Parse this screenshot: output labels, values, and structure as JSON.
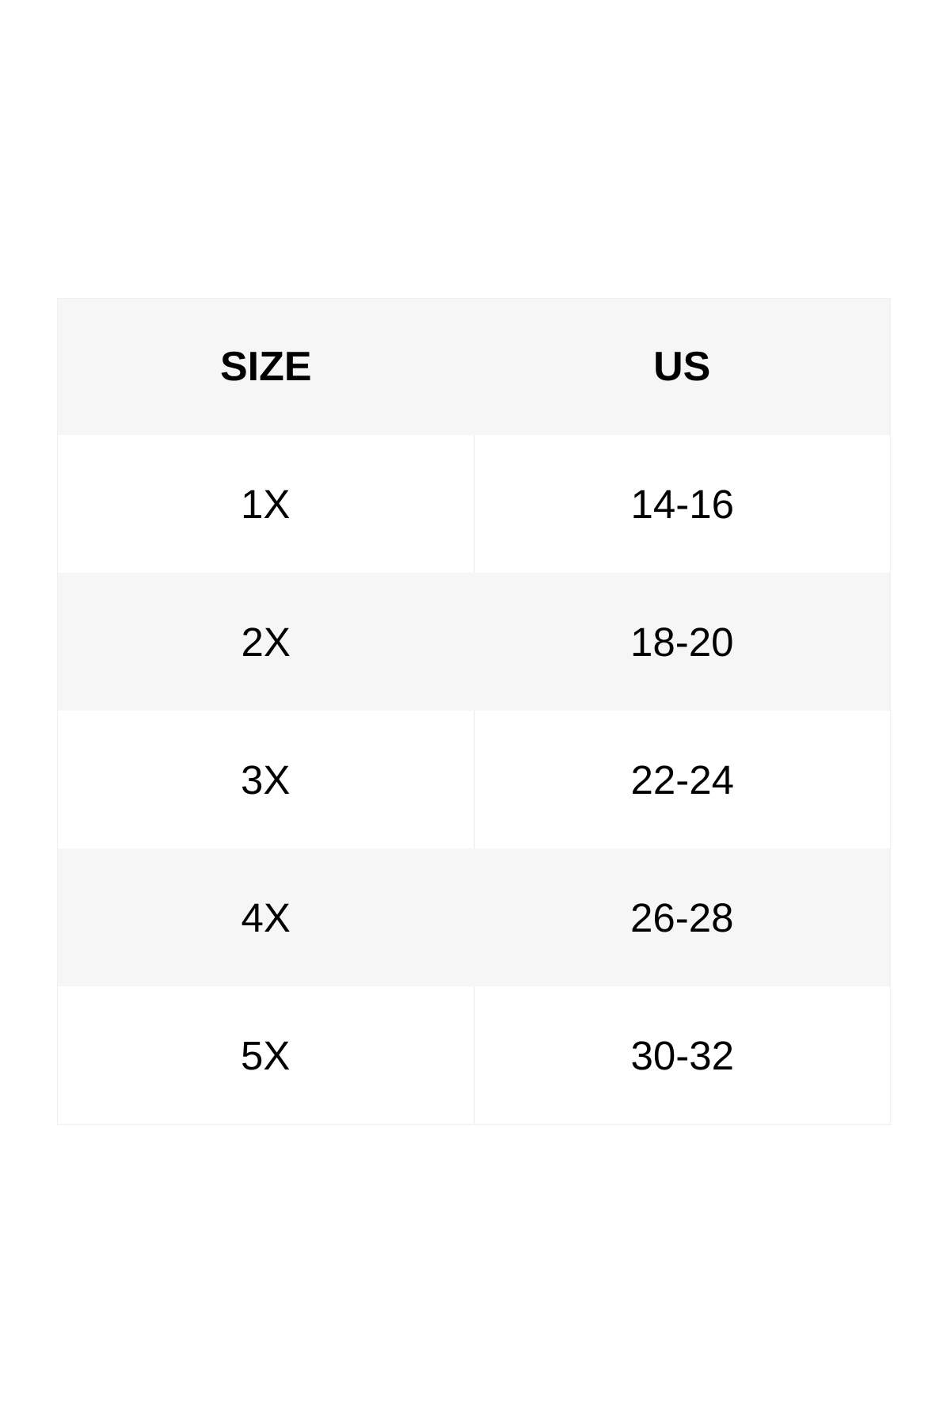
{
  "table": {
    "headers": [
      "SIZE",
      "US"
    ],
    "rows": [
      [
        "1X",
        "14-16"
      ],
      [
        "2X",
        "18-20"
      ],
      [
        "3X",
        "22-24"
      ],
      [
        "4X",
        "26-28"
      ],
      [
        "5X",
        "30-32"
      ]
    ]
  },
  "colors": {
    "header_bg": "#f6f6f6",
    "alt_row_bg": "#f6f6f6",
    "row_bg": "#ffffff",
    "text": "#000000"
  }
}
